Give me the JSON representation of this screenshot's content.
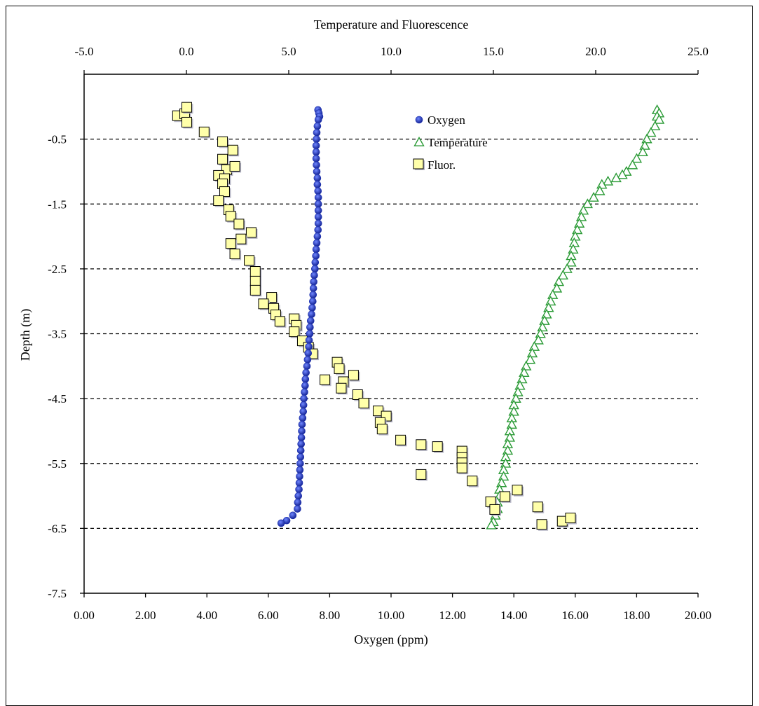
{
  "chart_data": {
    "type": "scatter",
    "title": "",
    "top_axis": {
      "label": "Temperature and Fluorescence",
      "range": [
        -5,
        25
      ],
      "ticks": [
        -5,
        0,
        5,
        10,
        15,
        20,
        25
      ],
      "tick_labels": [
        "-5.0",
        "0.0",
        "5.0",
        "10.0",
        "15.0",
        "20.0",
        "25.0"
      ]
    },
    "bottom_axis": {
      "label": "Oxygen (ppm)",
      "range": [
        0,
        20
      ],
      "ticks": [
        0,
        2,
        4,
        6,
        8,
        10,
        12,
        14,
        16,
        18,
        20
      ],
      "tick_labels": [
        "0.00",
        "2.00",
        "4.00",
        "6.00",
        "8.00",
        "10.00",
        "12.00",
        "14.00",
        "16.00",
        "18.00",
        "20.00"
      ]
    },
    "y_axis": {
      "label": "Depth (m)",
      "range": [
        -7.5,
        0.5
      ],
      "ticks": [
        -7.5,
        -6.5,
        -5.5,
        -4.5,
        -3.5,
        -2.5,
        -1.5,
        -0.5
      ],
      "tick_labels": [
        "-7.5",
        "-6.5",
        "-5.5",
        "-4.5",
        "-3.5",
        "-2.5",
        "-1.5",
        "-0.5"
      ]
    },
    "grid": "horizontal dashed at labeled y ticks",
    "legend": {
      "position": "top-right",
      "entries": [
        "Oxygen",
        "Temperature",
        "Fluor."
      ]
    },
    "series": [
      {
        "name": "Oxygen",
        "x_axis": "bottom",
        "color": "#1a2fb0",
        "marker": "circle",
        "points": [
          [
            7.62,
            -0.05
          ],
          [
            7.65,
            -0.1
          ],
          [
            7.67,
            -0.15
          ],
          [
            7.63,
            -0.2
          ],
          [
            7.6,
            -0.3
          ],
          [
            7.58,
            -0.4
          ],
          [
            7.57,
            -0.5
          ],
          [
            7.56,
            -0.6
          ],
          [
            7.56,
            -0.7
          ],
          [
            7.56,
            -0.8
          ],
          [
            7.57,
            -0.9
          ],
          [
            7.58,
            -1.0
          ],
          [
            7.6,
            -1.1
          ],
          [
            7.6,
            -1.2
          ],
          [
            7.62,
            -1.3
          ],
          [
            7.63,
            -1.4
          ],
          [
            7.63,
            -1.5
          ],
          [
            7.63,
            -1.6
          ],
          [
            7.63,
            -1.7
          ],
          [
            7.63,
            -1.8
          ],
          [
            7.62,
            -1.9
          ],
          [
            7.6,
            -2.0
          ],
          [
            7.58,
            -2.1
          ],
          [
            7.56,
            -2.2
          ],
          [
            7.55,
            -2.3
          ],
          [
            7.53,
            -2.4
          ],
          [
            7.52,
            -2.5
          ],
          [
            7.5,
            -2.6
          ],
          [
            7.48,
            -2.7
          ],
          [
            7.47,
            -2.8
          ],
          [
            7.46,
            -2.9
          ],
          [
            7.45,
            -3.0
          ],
          [
            7.43,
            -3.1
          ],
          [
            7.41,
            -3.2
          ],
          [
            7.38,
            -3.3
          ],
          [
            7.36,
            -3.4
          ],
          [
            7.35,
            -3.5
          ],
          [
            7.33,
            -3.6
          ],
          [
            7.32,
            -3.7
          ],
          [
            7.3,
            -3.8
          ],
          [
            7.28,
            -3.9
          ],
          [
            7.26,
            -4.0
          ],
          [
            7.23,
            -4.1
          ],
          [
            7.21,
            -4.2
          ],
          [
            7.2,
            -4.3
          ],
          [
            7.18,
            -4.4
          ],
          [
            7.16,
            -4.5
          ],
          [
            7.15,
            -4.6
          ],
          [
            7.14,
            -4.7
          ],
          [
            7.12,
            -4.8
          ],
          [
            7.1,
            -4.9
          ],
          [
            7.09,
            -5.0
          ],
          [
            7.08,
            -5.1
          ],
          [
            7.07,
            -5.2
          ],
          [
            7.06,
            -5.3
          ],
          [
            7.05,
            -5.4
          ],
          [
            7.04,
            -5.5
          ],
          [
            7.03,
            -5.6
          ],
          [
            7.02,
            -5.7
          ],
          [
            7.01,
            -5.8
          ],
          [
            7.0,
            -5.9
          ],
          [
            6.98,
            -6.0
          ],
          [
            6.96,
            -6.1
          ],
          [
            6.95,
            -6.2
          ],
          [
            6.8,
            -6.3
          ],
          [
            6.6,
            -6.38
          ],
          [
            6.42,
            -6.42
          ]
        ]
      },
      {
        "name": "Temperature",
        "x_axis": "top",
        "color": "#2a9a35",
        "marker": "triangle",
        "points": [
          [
            23.0,
            -0.05
          ],
          [
            23.1,
            -0.1
          ],
          [
            23.0,
            -0.15
          ],
          [
            23.1,
            -0.2
          ],
          [
            22.9,
            -0.3
          ],
          [
            22.7,
            -0.4
          ],
          [
            22.5,
            -0.5
          ],
          [
            22.4,
            -0.6
          ],
          [
            22.3,
            -0.7
          ],
          [
            22.0,
            -0.8
          ],
          [
            21.8,
            -0.9
          ],
          [
            21.5,
            -1.0
          ],
          [
            21.3,
            -1.05
          ],
          [
            21.0,
            -1.1
          ],
          [
            20.6,
            -1.15
          ],
          [
            20.3,
            -1.2
          ],
          [
            20.2,
            -1.3
          ],
          [
            19.9,
            -1.4
          ],
          [
            19.6,
            -1.5
          ],
          [
            19.4,
            -1.6
          ],
          [
            19.3,
            -1.7
          ],
          [
            19.2,
            -1.8
          ],
          [
            19.1,
            -1.9
          ],
          [
            19.0,
            -2.0
          ],
          [
            18.95,
            -2.1
          ],
          [
            18.9,
            -2.2
          ],
          [
            18.8,
            -2.3
          ],
          [
            18.8,
            -2.4
          ],
          [
            18.6,
            -2.5
          ],
          [
            18.4,
            -2.6
          ],
          [
            18.2,
            -2.7
          ],
          [
            18.1,
            -2.8
          ],
          [
            17.9,
            -2.9
          ],
          [
            17.8,
            -3.0
          ],
          [
            17.7,
            -3.1
          ],
          [
            17.6,
            -3.2
          ],
          [
            17.5,
            -3.3
          ],
          [
            17.4,
            -3.4
          ],
          [
            17.3,
            -3.5
          ],
          [
            17.2,
            -3.6
          ],
          [
            17.0,
            -3.7
          ],
          [
            16.9,
            -3.8
          ],
          [
            16.8,
            -3.9
          ],
          [
            16.6,
            -4.0
          ],
          [
            16.5,
            -4.1
          ],
          [
            16.4,
            -4.2
          ],
          [
            16.3,
            -4.3
          ],
          [
            16.2,
            -4.4
          ],
          [
            16.1,
            -4.5
          ],
          [
            16.0,
            -4.6
          ],
          [
            16.0,
            -4.7
          ],
          [
            15.9,
            -4.8
          ],
          [
            15.9,
            -4.9
          ],
          [
            15.8,
            -5.0
          ],
          [
            15.8,
            -5.1
          ],
          [
            15.7,
            -5.2
          ],
          [
            15.7,
            -5.3
          ],
          [
            15.6,
            -5.4
          ],
          [
            15.6,
            -5.5
          ],
          [
            15.5,
            -5.6
          ],
          [
            15.5,
            -5.7
          ],
          [
            15.4,
            -5.8
          ],
          [
            15.3,
            -5.9
          ],
          [
            15.3,
            -6.0
          ],
          [
            15.2,
            -6.1
          ],
          [
            15.2,
            -6.2
          ],
          [
            15.1,
            -6.3
          ],
          [
            15.0,
            -6.4
          ],
          [
            14.9,
            -6.45
          ]
        ]
      },
      {
        "name": "Fluor.",
        "x_axis": "top",
        "color": "#ffffaa",
        "marker": "square",
        "points": [
          [
            -0.4,
            -0.15
          ],
          [
            -0.05,
            -0.12
          ],
          [
            0.05,
            -0.25
          ],
          [
            0.05,
            -0.02
          ],
          [
            0.9,
            -0.4
          ],
          [
            1.8,
            -0.55
          ],
          [
            2.3,
            -0.68
          ],
          [
            1.8,
            -0.82
          ],
          [
            2.0,
            -0.98
          ],
          [
            2.4,
            -0.93
          ],
          [
            1.6,
            -1.07
          ],
          [
            1.9,
            -1.12
          ],
          [
            1.8,
            -1.2
          ],
          [
            1.9,
            -1.32
          ],
          [
            1.6,
            -1.46
          ],
          [
            2.1,
            -1.6
          ],
          [
            2.2,
            -1.7
          ],
          [
            2.6,
            -1.82
          ],
          [
            3.2,
            -1.95
          ],
          [
            2.7,
            -2.05
          ],
          [
            2.2,
            -2.12
          ],
          [
            2.4,
            -2.28
          ],
          [
            3.1,
            -2.38
          ],
          [
            3.4,
            -2.55
          ],
          [
            3.4,
            -2.7
          ],
          [
            3.4,
            -2.84
          ],
          [
            4.2,
            -2.95
          ],
          [
            3.8,
            -3.05
          ],
          [
            4.3,
            -3.12
          ],
          [
            4.4,
            -3.22
          ],
          [
            4.6,
            -3.32
          ],
          [
            5.3,
            -3.28
          ],
          [
            5.4,
            -3.38
          ],
          [
            5.3,
            -3.48
          ],
          [
            5.7,
            -3.62
          ],
          [
            6.0,
            -3.72
          ],
          [
            6.2,
            -3.82
          ],
          [
            7.4,
            -3.95
          ],
          [
            7.5,
            -4.05
          ],
          [
            8.2,
            -4.15
          ],
          [
            6.8,
            -4.22
          ],
          [
            7.7,
            -4.25
          ],
          [
            7.6,
            -4.35
          ],
          [
            8.4,
            -4.45
          ],
          [
            8.7,
            -4.58
          ],
          [
            9.4,
            -4.7
          ],
          [
            9.8,
            -4.78
          ],
          [
            9.5,
            -4.88
          ],
          [
            9.6,
            -4.98
          ],
          [
            10.5,
            -5.15
          ],
          [
            11.5,
            -5.22
          ],
          [
            12.3,
            -5.25
          ],
          [
            13.5,
            -5.32
          ],
          [
            13.5,
            -5.42
          ],
          [
            13.5,
            -5.5
          ],
          [
            13.5,
            -5.58
          ],
          [
            11.5,
            -5.68
          ],
          [
            14.0,
            -5.78
          ],
          [
            16.2,
            -5.92
          ],
          [
            15.6,
            -6.02
          ],
          [
            14.9,
            -6.1
          ],
          [
            15.1,
            -6.22
          ],
          [
            17.2,
            -6.18
          ],
          [
            17.4,
            -6.45
          ],
          [
            18.4,
            -6.4
          ],
          [
            18.8,
            -6.35
          ]
        ]
      }
    ]
  }
}
